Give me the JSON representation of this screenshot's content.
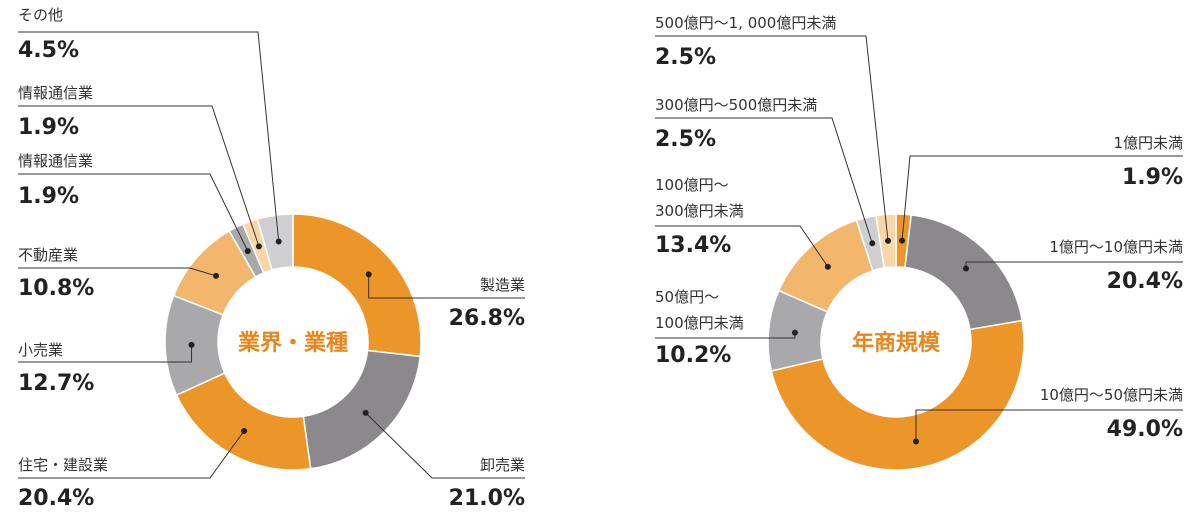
{
  "colors": {
    "orange": "#EC962A",
    "orange_light": "#F2B66D",
    "orange_pale": "#F8D6A8",
    "gray_dark": "#8B898B",
    "gray_mid": "#A9A8AA",
    "gray_light": "#CFCFD1",
    "text": "#222222",
    "accent_text": "#E8861E"
  },
  "chart_data": [
    {
      "type": "pie",
      "title": "業界・業種",
      "slices": [
        {
          "label": "製造業",
          "value": 26.8,
          "value_label": "26.8%",
          "color": "#EC962A"
        },
        {
          "label": "卸売業",
          "value": 21.0,
          "value_label": "21.0%",
          "color": "#8B898B"
        },
        {
          "label": "住宅・建設業",
          "value": 20.4,
          "value_label": "20.4%",
          "color": "#EC962A"
        },
        {
          "label": "小売業",
          "value": 12.7,
          "value_label": "12.7%",
          "color": "#A9A8AA"
        },
        {
          "label": "不動産業",
          "value": 10.8,
          "value_label": "10.8%",
          "color": "#F2B66D"
        },
        {
          "label": "情報通信業",
          "value": 1.9,
          "value_label": "1.9%",
          "color": "#A9A8AA"
        },
        {
          "label": "情報通信業",
          "value": 1.9,
          "value_label": "1.9%",
          "color": "#F8D6A8"
        },
        {
          "label": "その他",
          "value": 4.5,
          "value_label": "4.5%",
          "color": "#CFCFD1"
        }
      ]
    },
    {
      "type": "pie",
      "title": "年商規模",
      "slices": [
        {
          "label": "1億円未満",
          "value": 1.9,
          "value_label": "1.9%",
          "color": "#EC962A"
        },
        {
          "label": "1億円〜10億円未満",
          "value": 20.4,
          "value_label": "20.4%",
          "color": "#8B898B"
        },
        {
          "label": "10億円〜50億円未満",
          "value": 49.0,
          "value_label": "49.0%",
          "color": "#EC962A"
        },
        {
          "label": "50億円〜|100億円未満",
          "value": 10.2,
          "value_label": "10.2%",
          "color": "#A9A8AA"
        },
        {
          "label": "100億円〜|300億円未満",
          "value": 13.4,
          "value_label": "13.4%",
          "color": "#F2B66D"
        },
        {
          "label": "300億円〜500億円未満",
          "value": 2.5,
          "value_label": "2.5%",
          "color": "#CFCFD1"
        },
        {
          "label": "500億円〜1, 000億円未満",
          "value": 2.5,
          "value_label": "2.5%",
          "color": "#F8D6A8"
        }
      ]
    }
  ]
}
